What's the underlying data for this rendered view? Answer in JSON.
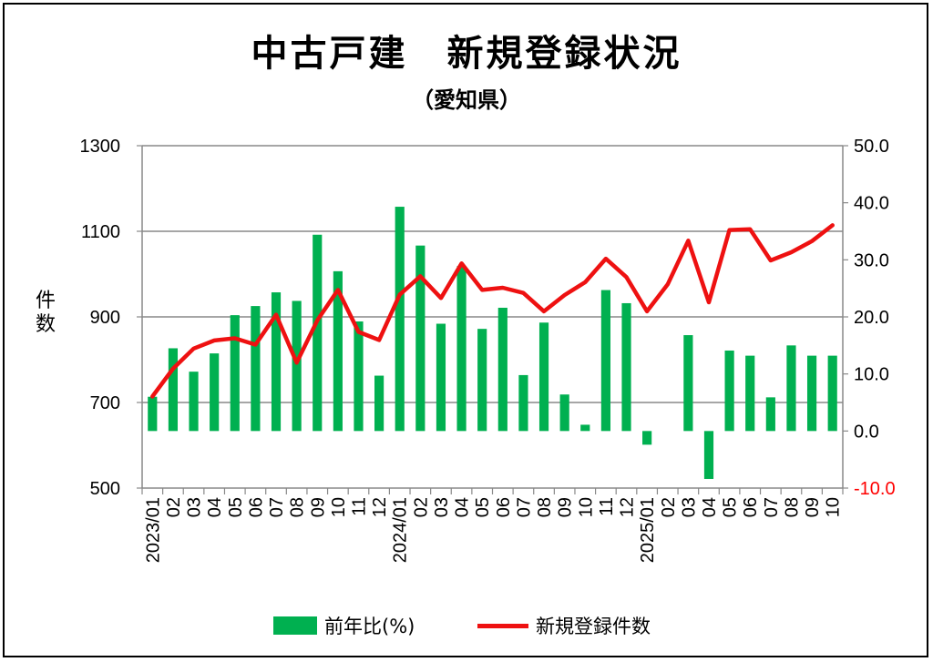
{
  "title": "中古戸建　新規登録状況",
  "subtitle": "（愛知県）",
  "chart_data": {
    "type": "bar+line",
    "left_axis": {
      "label": "件数",
      "min": 500,
      "max": 1300,
      "ticks": [
        500,
        700,
        900,
        1100,
        1300
      ],
      "tick_labels": [
        "500",
        "700",
        "900",
        "1100",
        "1300"
      ]
    },
    "right_axis": {
      "min": -10,
      "max": 50,
      "ticks": [
        -10,
        0,
        10,
        20,
        30,
        40,
        50
      ],
      "tick_labels": [
        "-10.0",
        "0.0",
        "10.0",
        "20.0",
        "30.0",
        "40.0",
        "50.0"
      ],
      "negative_label_color": "#FF0000"
    },
    "categories": [
      "2023/01",
      "02",
      "03",
      "04",
      "05",
      "06",
      "07",
      "08",
      "09",
      "10",
      "11",
      "12",
      "2024/01",
      "02",
      "03",
      "04",
      "05",
      "06",
      "07",
      "08",
      "09",
      "10",
      "11",
      "12",
      "2025/01",
      "02",
      "03",
      "04",
      "05",
      "06",
      "07",
      "08",
      "09",
      "10"
    ],
    "grid": true,
    "legend_position": "bottom",
    "series": [
      {
        "name": "前年比(%)",
        "type": "bar",
        "axis": "right",
        "color": "#00B050",
        "values": [
          6.0,
          14.5,
          10.4,
          13.6,
          20.3,
          21.9,
          24.3,
          22.8,
          34.4,
          28.0,
          19.2,
          9.7,
          39.3,
          32.5,
          18.8,
          28.9,
          17.9,
          21.6,
          9.8,
          19.0,
          6.4,
          1.1,
          24.7,
          22.4,
          -2.4,
          0.0,
          16.8,
          -8.4,
          14.1,
          13.2,
          5.9,
          15.0,
          13.2,
          13.2
        ]
      },
      {
        "name": "新規登録件数",
        "type": "line",
        "axis": "left",
        "color": "#EE1111",
        "values": [
          714,
          779,
          826,
          845,
          850,
          835,
          905,
          793,
          892,
          963,
          865,
          846,
          952,
          995,
          944,
          1025,
          963,
          968,
          956,
          913,
          951,
          981,
          1036,
          993,
          913,
          976,
          1078,
          934,
          1103,
          1105,
          1032,
          1051,
          1077,
          1114
        ]
      }
    ]
  },
  "legend": {
    "bar_label": "前年比(%)",
    "line_label": "新規登録件数"
  }
}
